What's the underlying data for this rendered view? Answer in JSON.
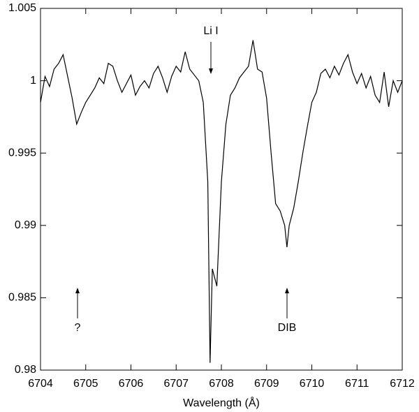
{
  "chart_data": {
    "type": "line",
    "x_label": "Wavelength (Å)",
    "annotations": [
      "Li I",
      "?",
      "DIB"
    ],
    "xlim": [
      6704,
      6712
    ],
    "xticks": [
      6704,
      6705,
      6706,
      6707,
      6708,
      6709,
      6710,
      6711,
      6712
    ],
    "ylim": [
      0.98,
      1.005
    ],
    "yticks": [
      0.98,
      0.985,
      0.99,
      0.995,
      1,
      1.005
    ],
    "grid": false,
    "series": [
      {
        "color": "#000000",
        "x": [
          6704.0,
          6704.1,
          6704.2,
          6704.3,
          6704.4,
          6704.5,
          6704.6,
          6704.7,
          6704.8,
          6704.9,
          6705.0,
          6705.1,
          6705.2,
          6705.3,
          6705.4,
          6705.5,
          6705.6,
          6705.7,
          6705.8,
          6705.9,
          6706.0,
          6706.1,
          6706.2,
          6706.3,
          6706.4,
          6706.5,
          6706.6,
          6706.7,
          6706.8,
          6706.9,
          6707.0,
          6707.1,
          6707.2,
          6707.3,
          6707.4,
          6707.5,
          6707.6,
          6707.7,
          6707.75,
          6707.8,
          6707.9,
          6708.0,
          6708.1,
          6708.2,
          6708.3,
          6708.4,
          6708.5,
          6708.6,
          6708.7,
          6708.8,
          6708.9,
          6709.0,
          6709.1,
          6709.2,
          6709.3,
          6709.4,
          6709.45,
          6709.5,
          6709.6,
          6709.7,
          6709.8,
          6709.9,
          6710.0,
          6710.1,
          6710.2,
          6710.3,
          6710.4,
          6710.5,
          6710.6,
          6710.7,
          6710.8,
          6710.9,
          6711.0,
          6711.1,
          6711.2,
          6711.3,
          6711.4,
          6711.5,
          6711.6,
          6711.7,
          6711.8,
          6711.9,
          6712.0
        ],
        "values": [
          0.9985,
          1.0003,
          0.9996,
          1.0008,
          1.0012,
          1.0018,
          1.0003,
          0.9988,
          0.997,
          0.9978,
          0.9985,
          0.999,
          0.9995,
          1.0002,
          0.9998,
          1.0012,
          1.001,
          1.0,
          0.9992,
          0.9998,
          1.0004,
          0.999,
          0.9996,
          1.0,
          0.9995,
          1.0005,
          1.001,
          1.0002,
          0.9992,
          1.0003,
          1.001,
          1.0006,
          1.002,
          1.0008,
          1.0004,
          1.0,
          0.9985,
          0.993,
          0.9805,
          0.987,
          0.9858,
          0.993,
          0.997,
          0.999,
          0.9995,
          1.0002,
          1.0006,
          1.001,
          1.0028,
          1.0008,
          1.0006,
          0.9988,
          0.995,
          0.9915,
          0.991,
          0.99,
          0.9885,
          0.99,
          0.9912,
          0.993,
          0.995,
          0.9968,
          0.9985,
          0.9992,
          1.0005,
          1.0008,
          1.0002,
          1.001,
          1.0004,
          1.0012,
          1.0018,
          1.0006,
          0.9998,
          1.0005,
          0.9995,
          1.0003,
          0.999,
          0.9985,
          1.0006,
          0.9982,
          1.0,
          0.9992,
          1.0
        ]
      }
    ]
  }
}
